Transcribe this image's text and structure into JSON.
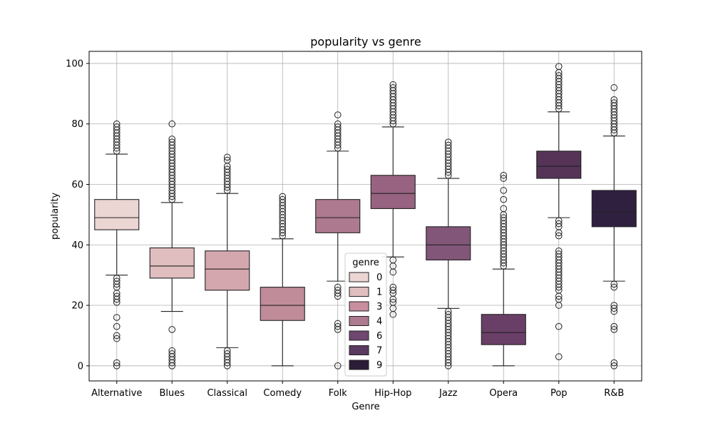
{
  "chart_data": {
    "type": "box",
    "title": "popularity vs genre",
    "xlabel": "Genre",
    "ylabel": "popularity",
    "ylim": [
      -5,
      104
    ],
    "yticks": [
      0,
      20,
      40,
      60,
      80,
      100
    ],
    "grid": true,
    "legend": {
      "title": "genre",
      "placement": "bottom-center",
      "entries": [
        {
          "label": "0",
          "color": "#ebd6d4"
        },
        {
          "label": "1",
          "color": "#e0bdbf"
        },
        {
          "label": "3",
          "color": "#c78e9e"
        },
        {
          "label": "4",
          "color": "#ae7a8f"
        },
        {
          "label": "6",
          "color": "#6f4770"
        },
        {
          "label": "7",
          "color": "#5a3a5e"
        },
        {
          "label": "9",
          "color": "#2b1c38"
        }
      ]
    },
    "categories": [
      "Alternative",
      "Blues",
      "Classical",
      "Comedy",
      "Folk",
      "Hip-Hop",
      "Jazz",
      "Opera",
      "Pop",
      "R&B"
    ],
    "boxes": [
      {
        "category": "Alternative",
        "color": "#ebd6d4",
        "whislo": 30,
        "q1": 45,
        "med": 49,
        "q3": 55,
        "whishi": 70,
        "fliers": [
          80,
          79,
          78,
          77,
          76,
          75,
          74,
          73,
          72,
          71,
          29,
          28,
          27,
          26,
          24,
          23,
          22,
          21,
          16,
          13,
          10,
          9,
          1,
          0
        ]
      },
      {
        "category": "Blues",
        "color": "#e0bdbf",
        "whislo": 18,
        "q1": 29,
        "med": 33,
        "q3": 39,
        "whishi": 54,
        "fliers": [
          80,
          75,
          74,
          73,
          72,
          71,
          70,
          69,
          68,
          67,
          66,
          65,
          64,
          63,
          62,
          61,
          60,
          59,
          58,
          57,
          56,
          55,
          12,
          5,
          4,
          3,
          2,
          1,
          0
        ]
      },
      {
        "category": "Classical",
        "color": "#d4a7ae",
        "whislo": 6,
        "q1": 25,
        "med": 32,
        "q3": 38,
        "whishi": 57,
        "fliers": [
          69,
          68,
          66,
          65,
          64,
          63,
          62,
          61,
          60,
          59,
          58,
          5,
          4,
          3,
          2,
          1,
          0
        ]
      },
      {
        "category": "Comedy",
        "color": "#c08c9a",
        "whislo": 0,
        "q1": 15,
        "med": 20,
        "q3": 26,
        "whishi": 42,
        "fliers": [
          56,
          55,
          54,
          53,
          52,
          51,
          50,
          49,
          48,
          47,
          46,
          45,
          44,
          43
        ]
      },
      {
        "category": "Folk",
        "color": "#ae7a8f",
        "whislo": 28,
        "q1": 44,
        "med": 49,
        "q3": 55,
        "whishi": 71,
        "fliers": [
          83,
          80,
          79,
          78,
          77,
          76,
          75,
          74,
          73,
          72,
          26,
          25,
          24,
          23,
          14,
          13,
          12,
          0
        ]
      },
      {
        "category": "Hip-Hop",
        "color": "#976381",
        "whislo": 36,
        "q1": 52,
        "med": 57,
        "q3": 63,
        "whishi": 79,
        "fliers": [
          93,
          92,
          91,
          90,
          89,
          88,
          87,
          86,
          85,
          84,
          83,
          82,
          81,
          80,
          35,
          33,
          31,
          26,
          25,
          24,
          22,
          21,
          19,
          17
        ]
      },
      {
        "category": "Jazz",
        "color": "#825679",
        "whislo": 19,
        "q1": 35,
        "med": 40,
        "q3": 46,
        "whishi": 62,
        "fliers": [
          74,
          73,
          72,
          71,
          70,
          69,
          68,
          67,
          66,
          65,
          64,
          63,
          18,
          17,
          16,
          15,
          14,
          13,
          12,
          11,
          10,
          9,
          8,
          7,
          6,
          5,
          4,
          3,
          2,
          1,
          0
        ]
      },
      {
        "category": "Opera",
        "color": "#6a3f67",
        "whislo": 0,
        "q1": 7,
        "med": 11,
        "q3": 17,
        "whishi": 32,
        "fliers": [
          63,
          62,
          58,
          55,
          52,
          50,
          49,
          48,
          47,
          46,
          45,
          44,
          43,
          42,
          41,
          40,
          39,
          38,
          37,
          36,
          35,
          34,
          33
        ]
      },
      {
        "category": "Pop",
        "color": "#553457",
        "whislo": 49,
        "q1": 62,
        "med": 66,
        "q3": 71,
        "whishi": 84,
        "fliers": [
          99,
          97,
          96,
          95,
          94,
          93,
          92,
          91,
          90,
          89,
          88,
          87,
          86,
          85,
          48,
          47,
          46,
          44,
          43,
          38,
          37,
          36,
          35,
          34,
          33,
          32,
          31,
          30,
          29,
          28,
          27,
          26,
          25,
          23,
          22,
          20,
          13,
          3
        ]
      },
      {
        "category": "R&B",
        "color": "#2f2040",
        "whislo": 28,
        "q1": 46,
        "med": 51,
        "q3": 58,
        "whishi": 76,
        "fliers": [
          92,
          88,
          87,
          86,
          85,
          84,
          83,
          82,
          81,
          80,
          79,
          78,
          77,
          27,
          26,
          20,
          19,
          18,
          13,
          12,
          1,
          0
        ]
      }
    ]
  }
}
